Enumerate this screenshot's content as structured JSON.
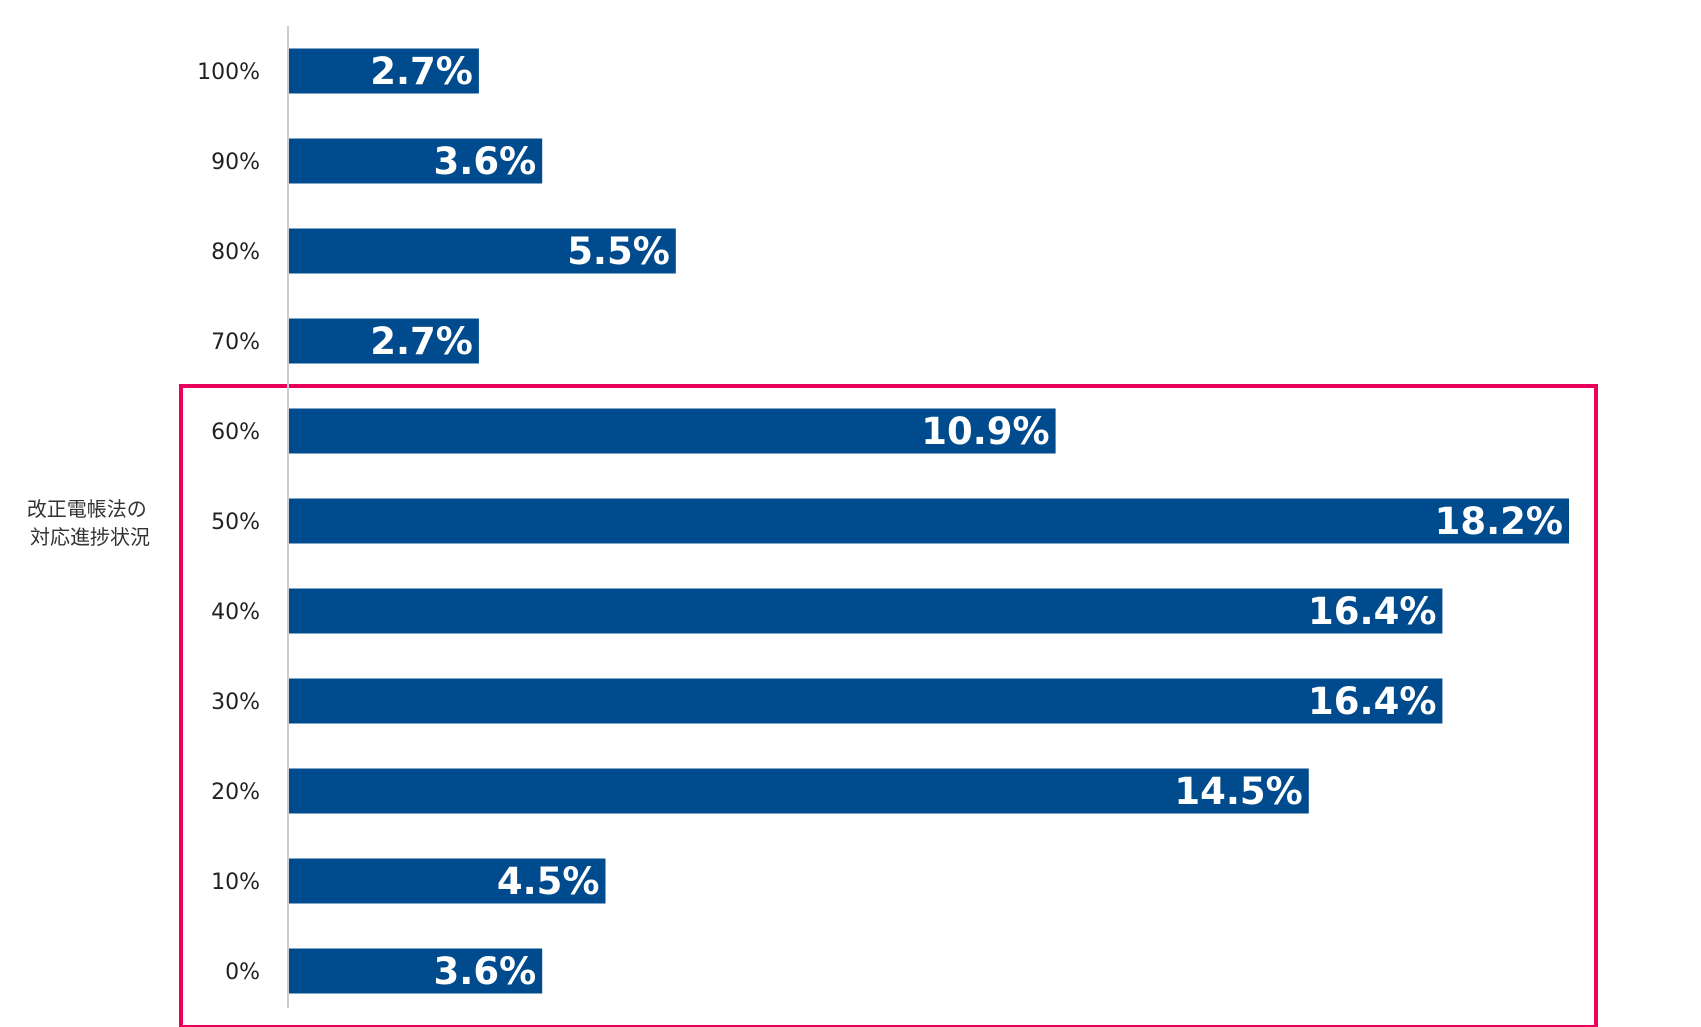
{
  "chart_data": {
    "type": "bar",
    "orientation": "horizontal",
    "ylabel_lines": [
      "改正電帳法の",
      "対応進捗状況"
    ],
    "categories": [
      "100%",
      "90%",
      "80%",
      "70%",
      "60%",
      "50%",
      "40%",
      "30%",
      "20%",
      "10%",
      "0%"
    ],
    "values": [
      2.7,
      3.6,
      5.5,
      2.7,
      10.9,
      18.2,
      16.4,
      16.4,
      14.5,
      4.5,
      3.6
    ],
    "data_labels": [
      "2.7%",
      "3.6%",
      "5.5%",
      "2.7%",
      "10.9%",
      "18.2%",
      "16.4%",
      "16.4%",
      "14.5%",
      "4.5%",
      "3.6%"
    ],
    "xlim": [
      0,
      18.2
    ],
    "grid": false,
    "legend": "none",
    "highlight": {
      "categories": [
        "60%",
        "50%",
        "40%",
        "30%",
        "20%",
        "10%",
        "0%"
      ],
      "color": "#e8005a"
    }
  },
  "colors": {
    "bar": "#004b8d",
    "axis": "#cccccc",
    "highlight_box": "#e8005a"
  }
}
